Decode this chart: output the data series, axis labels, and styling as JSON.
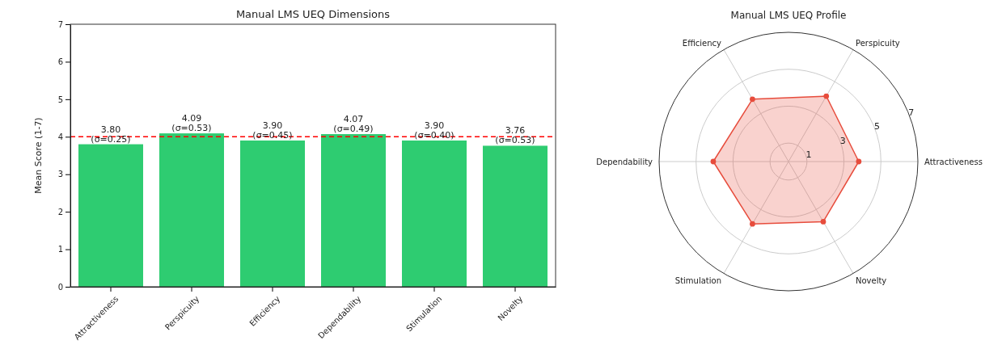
{
  "chart_data": [
    {
      "type": "bar",
      "title": "Manual LMS UEQ Dimensions",
      "ylabel": "Mean Score (1-7)",
      "categories": [
        "Attractiveness",
        "Perspicuity",
        "Efficiency",
        "Dependability",
        "Stimulation",
        "Novelty"
      ],
      "values": [
        3.8,
        4.09,
        3.9,
        4.07,
        3.9,
        3.76
      ],
      "value_labels": [
        "3.80\n(σ=0.25)",
        "4.09\n(σ=0.53)",
        "3.90\n(σ=0.45)",
        "4.07\n(σ=0.49)",
        "3.90\n(σ=0.40)",
        "3.76\n(σ=0.53)"
      ],
      "color": "#2ecc71",
      "ylim": [
        0,
        7
      ],
      "yticks": [
        0,
        1,
        2,
        3,
        4,
        5,
        6,
        7
      ],
      "ref_lines": [
        {
          "axis": "y",
          "value": 4,
          "color": "#ff0000",
          "line_style": "dashed"
        }
      ]
    },
    {
      "type": "radar",
      "title": "Manual LMS UEQ Profile",
      "categories": [
        "Perspicuity",
        "Attractiveness",
        "Novelty",
        "Stimulation",
        "Dependability",
        "Efficiency"
      ],
      "series": [
        {
          "color": "#e74c3c",
          "values": [
            4.09,
            3.8,
            3.76,
            3.9,
            4.07,
            3.9
          ]
        }
      ],
      "ylim": [
        0,
        7
      ],
      "yticks": [
        1,
        3,
        5,
        7
      ],
      "marker": "circle"
    }
  ]
}
